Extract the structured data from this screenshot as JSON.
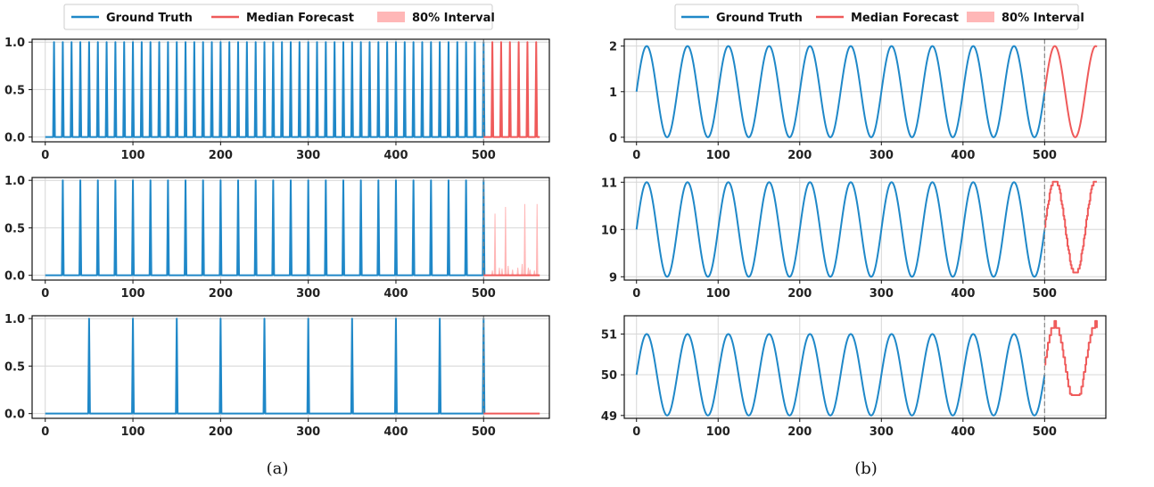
{
  "colors": {
    "ground_truth": "#1f88c8",
    "median": "#ef5a5a",
    "interval": "#ffb7b7",
    "grid": "#d6d6d6",
    "divider": "#888888"
  },
  "legend": {
    "ground_truth": "Ground Truth",
    "median": "Median Forecast",
    "interval": "80% Interval"
  },
  "captions": {
    "a": "(a)",
    "b": "(b)"
  },
  "chart_data": [
    {
      "id": "a1",
      "panel": "a",
      "type": "line",
      "kind": "spikes",
      "period": 10,
      "first_spike": 10,
      "pred_len": 64,
      "forecast": "periodic",
      "forecast_first_spike": 510,
      "xlim": [
        -15,
        575
      ],
      "ylim": [
        -0.05,
        1.03
      ],
      "xticks": [
        0,
        100,
        200,
        300,
        400,
        500
      ],
      "xtick_labels": [
        "0",
        "100",
        "200",
        "300",
        "400",
        "500"
      ],
      "yticks": [
        0.0,
        0.5,
        1.0
      ],
      "ytick_labels": [
        "0.0",
        "0.5",
        "1.0"
      ]
    },
    {
      "id": "a2",
      "panel": "a",
      "type": "line",
      "kind": "spikes",
      "period": 20,
      "first_spike": 20,
      "pred_len": 64,
      "forecast": "sparse",
      "forecast_interval_spikes": [
        [
          510,
          0.05
        ],
        [
          513,
          0.65
        ],
        [
          518,
          0.08
        ],
        [
          521,
          0.07
        ],
        [
          525,
          0.72
        ],
        [
          528,
          0.1
        ],
        [
          533,
          0.06
        ],
        [
          539,
          0.08
        ],
        [
          544,
          0.12
        ],
        [
          547,
          0.75
        ],
        [
          551,
          0.08
        ],
        [
          553,
          0.06
        ],
        [
          558,
          0.05
        ],
        [
          561,
          0.75
        ]
      ],
      "xlim": [
        -15,
        575
      ],
      "ylim": [
        -0.05,
        1.03
      ],
      "xticks": [
        0,
        100,
        200,
        300,
        400,
        500
      ],
      "xtick_labels": [
        "0",
        "100",
        "200",
        "300",
        "400",
        "500"
      ],
      "yticks": [
        0.0,
        0.5,
        1.0
      ],
      "ytick_labels": [
        "0.0",
        "0.5",
        "1.0"
      ]
    },
    {
      "id": "a3",
      "panel": "a",
      "type": "line",
      "kind": "spikes",
      "period": 50,
      "first_spike": 50,
      "pred_len": 64,
      "forecast": "flat",
      "xlim": [
        -15,
        575
      ],
      "ylim": [
        -0.05,
        1.03
      ],
      "xticks": [
        0,
        100,
        200,
        300,
        400,
        500
      ],
      "xtick_labels": [
        "0",
        "100",
        "200",
        "300",
        "400",
        "500"
      ],
      "yticks": [
        0.0,
        0.5,
        1.0
      ],
      "ytick_labels": [
        "0.0",
        "0.5",
        "1.0"
      ]
    },
    {
      "id": "b1",
      "panel": "b",
      "type": "line",
      "kind": "sine",
      "offset": 1,
      "amplitude": 1,
      "period": 50,
      "pred_len": 64,
      "quantize": 0,
      "xlim": [
        -15,
        575
      ],
      "ylim": [
        -0.1,
        2.15
      ],
      "xticks": [
        0,
        100,
        200,
        300,
        400,
        500
      ],
      "xtick_labels": [
        "0",
        "100",
        "200",
        "300",
        "400",
        "500"
      ],
      "yticks": [
        0,
        1,
        2
      ],
      "ytick_labels": [
        "0",
        "1",
        "2"
      ]
    },
    {
      "id": "b2",
      "panel": "b",
      "type": "line",
      "kind": "sine",
      "offset": 10,
      "amplitude": 1,
      "period": 50,
      "pred_len": 64,
      "quantize": 0.08,
      "xlim": [
        -15,
        575
      ],
      "ylim": [
        8.93,
        11.1
      ],
      "xticks": [
        0,
        100,
        200,
        300,
        400,
        500
      ],
      "xtick_labels": [
        "0",
        "100",
        "200",
        "300",
        "400",
        "500"
      ],
      "yticks": [
        9,
        10,
        11
      ],
      "ytick_labels": [
        "9",
        "10",
        "11"
      ]
    },
    {
      "id": "b3",
      "panel": "b",
      "type": "line",
      "kind": "sine",
      "offset": 50,
      "amplitude": 1,
      "period": 50,
      "pred_len": 64,
      "quantize": 0.18,
      "fc_peak": 51.32,
      "fc_trough": 49.5,
      "xlim": [
        -15,
        575
      ],
      "ylim": [
        48.93,
        51.45
      ],
      "xticks": [
        0,
        100,
        200,
        300,
        400,
        500
      ],
      "xtick_labels": [
        "0",
        "100",
        "200",
        "300",
        "400",
        "500"
      ],
      "yticks": [
        49,
        50,
        51
      ],
      "ytick_labels": [
        "49",
        "50",
        "51"
      ]
    }
  ]
}
